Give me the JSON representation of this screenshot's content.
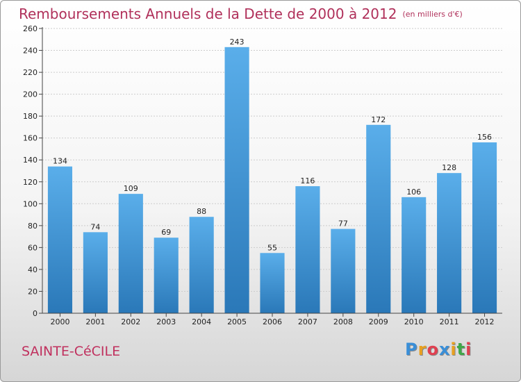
{
  "chart_data": {
    "type": "bar",
    "title": "Remboursements Annuels de la Dette de 2000 à 2012",
    "subtitle": "(en milliers d'€)",
    "categories": [
      "2000",
      "2001",
      "2002",
      "2003",
      "2004",
      "2005",
      "2006",
      "2007",
      "2008",
      "2009",
      "2010",
      "2011",
      "2012"
    ],
    "values": [
      134,
      74,
      109,
      69,
      88,
      243,
      55,
      116,
      77,
      172,
      106,
      128,
      156
    ],
    "ylim": [
      0,
      260
    ],
    "yticks": [
      0,
      20,
      40,
      60,
      80,
      100,
      120,
      140,
      160,
      180,
      200,
      220,
      240,
      260
    ],
    "grid": true,
    "bar_color_top": "#5aaeea",
    "bar_color_bottom": "#2a78b8"
  },
  "footer": {
    "place": "SAINTE-CéCILE",
    "logo_letters": [
      "P",
      "r",
      "o",
      "x",
      "i",
      "t",
      "i"
    ],
    "logo_colors": [
      "#3a8fd8",
      "#e8a020",
      "#e04050",
      "#3a8fd8",
      "#e8a020",
      "#40a848",
      "#e04050"
    ]
  }
}
